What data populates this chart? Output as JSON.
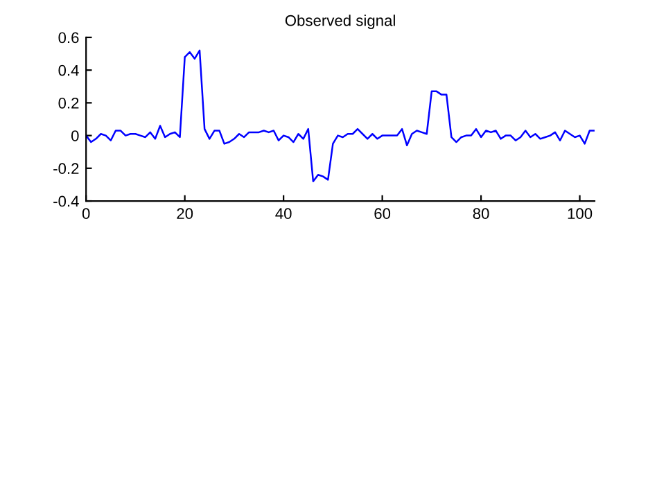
{
  "chart_data": {
    "type": "line",
    "title": "Observed signal",
    "x": [
      0,
      1,
      2,
      3,
      4,
      5,
      6,
      7,
      8,
      9,
      10,
      11,
      12,
      13,
      14,
      15,
      16,
      17,
      18,
      19,
      20,
      21,
      22,
      23,
      24,
      25,
      26,
      27,
      28,
      29,
      30,
      31,
      32,
      33,
      34,
      35,
      36,
      37,
      38,
      39,
      40,
      41,
      42,
      43,
      44,
      45,
      46,
      47,
      48,
      49,
      50,
      51,
      52,
      53,
      54,
      55,
      56,
      57,
      58,
      59,
      60,
      61,
      62,
      63,
      64,
      65,
      66,
      67,
      68,
      69,
      70,
      71,
      72,
      73,
      74,
      75,
      76,
      77,
      78,
      79,
      80,
      81,
      82,
      83,
      84,
      85,
      86,
      87,
      88,
      89,
      90,
      91,
      92,
      93,
      94,
      95,
      96,
      97,
      98,
      99,
      100,
      101,
      102,
      103
    ],
    "series": [
      {
        "color": "#0000ff",
        "values": [
          0,
          -0.04,
          -0.02,
          0.01,
          0,
          -0.03,
          0.03,
          0.03,
          0,
          0.01,
          0.01,
          0,
          -0.01,
          0.02,
          -0.02,
          0.06,
          -0.01,
          0.01,
          0.02,
          -0.01,
          0.48,
          0.51,
          0.47,
          0.52,
          0.04,
          -0.02,
          0.03,
          0.03,
          -0.05,
          -0.04,
          -0.02,
          0.01,
          -0.01,
          0.02,
          0.02,
          0.02,
          0.03,
          0.02,
          0.03,
          -0.03,
          0,
          -0.01,
          -0.04,
          0.01,
          -0.02,
          0.04,
          -0.28,
          -0.24,
          -0.25,
          -0.27,
          -0.05,
          0,
          -0.01,
          0.01,
          0.01,
          0.04,
          0.01,
          -0.02,
          0.01,
          -0.02,
          0,
          0,
          0,
          0,
          0.04,
          -0.06,
          0.01,
          0.03,
          0.02,
          0.01,
          0.27,
          0.27,
          0.25,
          0.25,
          -0.01,
          -0.04,
          -0.01,
          0,
          0,
          0.04,
          -0.01,
          0.03,
          0.02,
          0.03,
          -0.02,
          0,
          0,
          -0.03,
          -0.01,
          0.03,
          -0.01,
          0.01,
          -0.02,
          -0.01,
          0,
          0.02,
          -0.03,
          0.03,
          0.01,
          -0.01,
          0,
          -0.05,
          0.03,
          0.03
        ]
      }
    ],
    "xlim": [
      0,
      103
    ],
    "xticks": [
      0,
      20,
      40,
      60,
      80,
      100
    ],
    "ylim": [
      -0.4,
      0.6
    ],
    "yticks": [
      -0.4,
      -0.2,
      0,
      0.2,
      0.4,
      0.6
    ],
    "grid": false,
    "legend": false,
    "marker": "none",
    "line_style": "solid"
  }
}
